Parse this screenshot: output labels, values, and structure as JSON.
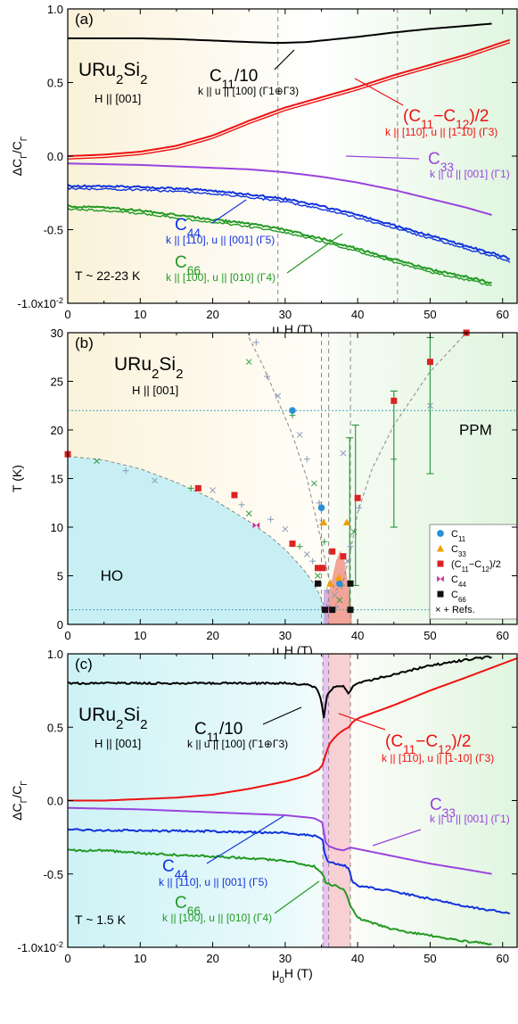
{
  "colors": {
    "c11": "#000000",
    "c11_c12": "#ee1111",
    "c33": "#9944dd",
    "c44": "#1133dd",
    "c66": "#229922",
    "refs": "#339944",
    "ho_fill": "#c8f0f4",
    "ppm_fill": "#e6f6e4",
    "warm_fill": "#faf4dc",
    "pink_band": "#f7c8cc",
    "violet_band": "#e6b8f0"
  },
  "chart_data": [
    {
      "type": "line",
      "panel": "(a)",
      "material": [
        "URu",
        "2",
        "Si",
        "2"
      ],
      "field_dir": "H || [001]",
      "temperature": "T ~ 22-23 K",
      "xlabel": [
        "μ",
        "0",
        "H (T)"
      ],
      "ylabel": [
        "ΔC",
        "Γ",
        "/C",
        "Γ"
      ],
      "xlim": [
        0,
        62
      ],
      "ylim": [
        -1.0,
        1.0
      ],
      "xticks": [
        "0",
        "10",
        "20",
        "30",
        "40",
        "50",
        "60"
      ],
      "yticks": [
        {
          "v": 1.0,
          "label": "1.0"
        },
        {
          "v": 0.5,
          "label": "0.5"
        },
        {
          "v": 0.0,
          "label": "0.0"
        },
        {
          "v": -0.5,
          "label": "-0.5"
        },
        {
          "v": -1.0,
          "label": "-1.0x10",
          "exp": "-2"
        }
      ],
      "vlines": [
        29,
        45.5
      ],
      "series": [
        {
          "key": "c11",
          "x": [
            0,
            5,
            10,
            15,
            20,
            25,
            28,
            30,
            33,
            36,
            40,
            45,
            50,
            55,
            58.5
          ],
          "y": [
            0.8,
            0.8,
            0.8,
            0.795,
            0.785,
            0.775,
            0.77,
            0.77,
            0.775,
            0.79,
            0.81,
            0.84,
            0.865,
            0.885,
            0.9
          ]
        },
        {
          "key": "c11_c12",
          "x": [
            0,
            5,
            10,
            15,
            20,
            25,
            30,
            35,
            40,
            45,
            50,
            55,
            58,
            61
          ],
          "y": [
            0.0,
            0.01,
            0.03,
            0.07,
            0.14,
            0.24,
            0.33,
            0.4,
            0.47,
            0.55,
            0.62,
            0.69,
            0.74,
            0.79
          ],
          "double": true
        },
        {
          "key": "c33",
          "x": [
            0,
            5,
            10,
            15,
            20,
            25,
            30,
            35,
            40,
            45,
            50,
            55,
            58.5
          ],
          "y": [
            -0.05,
            -0.055,
            -0.06,
            -0.07,
            -0.08,
            -0.09,
            -0.11,
            -0.14,
            -0.18,
            -0.23,
            -0.29,
            -0.35,
            -0.4
          ]
        },
        {
          "key": "c44",
          "x": [
            0,
            5,
            10,
            15,
            20,
            25,
            30,
            35,
            40,
            45,
            50,
            55,
            60,
            61
          ],
          "y": [
            -0.2,
            -0.205,
            -0.21,
            -0.22,
            -0.235,
            -0.26,
            -0.29,
            -0.34,
            -0.4,
            -0.47,
            -0.54,
            -0.61,
            -0.68,
            -0.7
          ],
          "double": true,
          "noisy": true
        },
        {
          "key": "c66",
          "x": [
            0,
            5,
            10,
            15,
            20,
            25,
            30,
            35,
            40,
            45,
            50,
            55,
            58.5
          ],
          "y": [
            -0.34,
            -0.35,
            -0.37,
            -0.4,
            -0.43,
            -0.46,
            -0.5,
            -0.56,
            -0.63,
            -0.7,
            -0.77,
            -0.82,
            -0.86
          ],
          "double": true,
          "noisy": true
        }
      ],
      "labels": [
        {
          "key": "c11",
          "main": [
            "C",
            "11",
            "/10"
          ],
          "sub": "k || u || [100]  (Γ1⊕Γ3)"
        },
        {
          "key": "c11_c12",
          "main": [
            "(C",
            "11",
            "−C",
            "12",
            ")/2"
          ],
          "sub": "k || [110], u || [1-10]  (Γ3)"
        },
        {
          "key": "c33",
          "main": [
            "C",
            "33"
          ],
          "sub": "k || u || [001]  (Γ1)"
        },
        {
          "key": "c44",
          "main": [
            "C",
            "44"
          ],
          "sub": "k || [110], u || [001]  (Γ5)"
        },
        {
          "key": "c66",
          "main": [
            "C",
            "66"
          ],
          "sub": "k || [100], u || [010]  (Γ4)"
        }
      ]
    },
    {
      "type": "scatter",
      "panel": "(b)",
      "material": [
        "URu",
        "2",
        "Si",
        "2"
      ],
      "field_dir": "H || [001]",
      "xlabel": [
        "μ",
        "0",
        "H (T)"
      ],
      "ylabel": "T (K)",
      "xlim": [
        0,
        62
      ],
      "ylim": [
        0,
        30
      ],
      "xticks": [
        "0",
        "10",
        "20",
        "30",
        "40",
        "50",
        "60"
      ],
      "yticks": [
        "0",
        "5",
        "10",
        "15",
        "20",
        "25",
        "30"
      ],
      "regions": [
        "HO",
        "PPM"
      ],
      "hlines": [
        22,
        1.5
      ],
      "vlines": [
        35,
        36,
        39
      ],
      "legend": [
        "C",
        "11",
        "C",
        "33",
        "(C",
        "11",
        "−C",
        "12",
        ")/2",
        "C",
        "44",
        "C",
        "66",
        "× + Refs."
      ],
      "points": {
        "c11": [
          [
            31,
            22
          ],
          [
            35,
            12
          ],
          [
            37.5,
            4.2
          ]
        ],
        "c33": [
          [
            35.3,
            10.5
          ],
          [
            36.2,
            4.2
          ],
          [
            38.5,
            10.5
          ],
          [
            37.4,
            4.8
          ]
        ],
        "c11_c12": [
          [
            0,
            17.5
          ],
          [
            18,
            14
          ],
          [
            23,
            13.3
          ],
          [
            31,
            8.3
          ],
          [
            34.5,
            5.8
          ],
          [
            35.2,
            5.8
          ],
          [
            36.5,
            7.5
          ],
          [
            38,
            7
          ],
          [
            40,
            13
          ],
          [
            45,
            23
          ],
          [
            50,
            27
          ],
          [
            55,
            30
          ]
        ],
        "c44": [
          [
            26,
            10.2
          ],
          [
            35.5,
            1.6
          ]
        ],
        "c66": [
          [
            34.5,
            4.2
          ],
          [
            35.5,
            1.5
          ],
          [
            39,
            4.2
          ],
          [
            39,
            1.5
          ],
          [
            36.5,
            1.5
          ]
        ]
      },
      "refs_points": [
        [
          4,
          16.8
        ],
        [
          8,
          15.8
        ],
        [
          12,
          14.8
        ],
        [
          17,
          14
        ],
        [
          20,
          13.8
        ],
        [
          24,
          12.3
        ],
        [
          25,
          11.4
        ],
        [
          28,
          10.8
        ],
        [
          30,
          9.8
        ],
        [
          32,
          8
        ],
        [
          33,
          7.2
        ],
        [
          33.8,
          6.5
        ],
        [
          34.5,
          5
        ],
        [
          35.8,
          3.5
        ],
        [
          36.8,
          3
        ],
        [
          37.8,
          4
        ],
        [
          38.6,
          6.5
        ],
        [
          39,
          8
        ],
        [
          39.5,
          9.5
        ],
        [
          40.2,
          12
        ],
        [
          38,
          17.6
        ],
        [
          45,
          17
        ],
        [
          50,
          22.5
        ],
        [
          26,
          29
        ],
        [
          25,
          27
        ],
        [
          27.5,
          25.5
        ],
        [
          29,
          23.5
        ],
        [
          31,
          21.5
        ],
        [
          32,
          19.5
        ],
        [
          33,
          17
        ],
        [
          34,
          14.5
        ],
        [
          34.7,
          12.5
        ],
        [
          35.1,
          10.5
        ],
        [
          35.4,
          8.5
        ],
        [
          36,
          1.8
        ],
        [
          37,
          1.8
        ],
        [
          37.5,
          2.5
        ]
      ],
      "error_bars": [
        [
          38.9,
          1.5,
          19.2
        ],
        [
          39.7,
          4,
          20.5
        ],
        [
          45,
          10,
          24
        ],
        [
          50,
          15.5,
          29.5
        ]
      ],
      "ho_boundary": {
        "x": [
          0,
          5,
          10,
          15,
          20,
          25,
          28,
          30,
          32,
          33,
          34,
          34.8,
          35.3,
          35.6
        ],
        "y": [
          17.3,
          16.9,
          16.0,
          14.6,
          12.9,
          10.6,
          9.0,
          7.7,
          6.1,
          5.2,
          4.1,
          3.0,
          2.0,
          1.5
        ]
      },
      "ppm_boundary": {
        "x": [
          25,
          27,
          29,
          31,
          33,
          35,
          36,
          37,
          38,
          39,
          40,
          42,
          45,
          50,
          55
        ],
        "y": [
          29.5,
          26.5,
          23,
          19.5,
          15,
          8.5,
          4.8,
          3.5,
          4.4,
          7.5,
          11.5,
          16,
          20.5,
          26,
          30
        ]
      },
      "pocket": {
        "x": [
          35.5,
          36.2,
          37,
          37.6,
          38.2,
          38.8,
          39.2
        ],
        "y": [
          1.5,
          3.8,
          6.5,
          7.6,
          6.5,
          3.5,
          1.5
        ]
      }
    },
    {
      "type": "line",
      "panel": "(c)",
      "material": [
        "URu",
        "2",
        "Si",
        "2"
      ],
      "field_dir": "H || [001]",
      "temperature": "T ~ 1.5 K",
      "xlabel": [
        "μ",
        "0",
        "H (T)"
      ],
      "ylabel": [
        "ΔC",
        "Γ",
        "/C",
        "Γ"
      ],
      "xlim": [
        0,
        62
      ],
      "ylim": [
        -1.0,
        1.0
      ],
      "xticks": [
        "0",
        "10",
        "20",
        "30",
        "40",
        "50",
        "60"
      ],
      "yticks": [
        {
          "v": 1.0,
          "label": "1.0"
        },
        {
          "v": 0.5,
          "label": "0.5"
        },
        {
          "v": 0.0,
          "label": "0.0"
        },
        {
          "v": -0.5,
          "label": "-0.5"
        },
        {
          "v": -1.0,
          "label": "-1.0x10",
          "exp": "-2"
        }
      ],
      "vlines": [
        35.2,
        36,
        39
      ],
      "bands": [
        {
          "x0": 35.2,
          "x1": 36,
          "key": "violet_band"
        },
        {
          "x0": 36,
          "x1": 39,
          "key": "pink_band"
        }
      ],
      "series": [
        {
          "key": "c11",
          "x": [
            0,
            10,
            20,
            30,
            33,
            34.5,
            35.0,
            35.3,
            35.7,
            36.2,
            37,
            38,
            38.8,
            39.2,
            40,
            45,
            50,
            55,
            58.5
          ],
          "y": [
            0.8,
            0.8,
            0.8,
            0.8,
            0.79,
            0.76,
            0.68,
            0.55,
            0.7,
            0.75,
            0.78,
            0.78,
            0.72,
            0.77,
            0.8,
            0.86,
            0.92,
            0.96,
            0.98
          ],
          "noisy": true
        },
        {
          "key": "c11_c12",
          "x": [
            0,
            5,
            10,
            15,
            20,
            25,
            30,
            33,
            35,
            35.5,
            36,
            37,
            38,
            38.8,
            39.2,
            40,
            45,
            50,
            55,
            62
          ],
          "y": [
            0.0,
            0.0,
            0.01,
            0.02,
            0.04,
            0.08,
            0.13,
            0.17,
            0.22,
            0.3,
            0.38,
            0.44,
            0.48,
            0.5,
            0.53,
            0.56,
            0.65,
            0.75,
            0.84,
            0.97
          ]
        },
        {
          "key": "c33",
          "x": [
            0,
            10,
            20,
            30,
            34,
            35.2,
            35.5,
            36,
            37,
            38,
            39,
            40,
            45,
            50,
            55,
            58.5
          ],
          "y": [
            -0.05,
            -0.06,
            -0.08,
            -0.1,
            -0.12,
            -0.15,
            -0.28,
            -0.31,
            -0.33,
            -0.34,
            -0.32,
            -0.33,
            -0.38,
            -0.43,
            -0.47,
            -0.5
          ]
        },
        {
          "key": "c44",
          "x": [
            0,
            10,
            20,
            30,
            34,
            35.2,
            35.5,
            36,
            37,
            38,
            38.8,
            39.2,
            40,
            45,
            50,
            55,
            61
          ],
          "y": [
            -0.2,
            -0.205,
            -0.21,
            -0.22,
            -0.24,
            -0.27,
            -0.38,
            -0.42,
            -0.43,
            -0.44,
            -0.46,
            -0.55,
            -0.58,
            -0.62,
            -0.67,
            -0.72,
            -0.77
          ],
          "noisy": true
        },
        {
          "key": "c66",
          "x": [
            0,
            5,
            10,
            20,
            30,
            34,
            35.2,
            35.5,
            36,
            37,
            38,
            38.5,
            39,
            40,
            45,
            50,
            55,
            58.5
          ],
          "y": [
            -0.34,
            -0.34,
            -0.36,
            -0.38,
            -0.41,
            -0.45,
            -0.5,
            -0.55,
            -0.57,
            -0.58,
            -0.6,
            -0.65,
            -0.72,
            -0.8,
            -0.88,
            -0.92,
            -0.96,
            -0.98
          ],
          "noisy": true
        }
      ],
      "labels": [
        {
          "key": "c11",
          "main": [
            "C",
            "11",
            "/10"
          ],
          "sub": "k || u || [100]  (Γ1⊕Γ3)"
        },
        {
          "key": "c11_c12",
          "main": [
            "(C",
            "11",
            "−C",
            "12",
            ")/2"
          ],
          "sub": "k || [110], u || [1-10]  (Γ3)"
        },
        {
          "key": "c33",
          "main": [
            "C",
            "33"
          ],
          "sub": "k || u || [001]  (Γ1)"
        },
        {
          "key": "c44",
          "main": [
            "C",
            "44"
          ],
          "sub": "k || [110], u || [001]  (Γ5)"
        },
        {
          "key": "c66",
          "main": [
            "C",
            "66"
          ],
          "sub": "k || [100], u || [010]  (Γ4)"
        }
      ]
    }
  ]
}
